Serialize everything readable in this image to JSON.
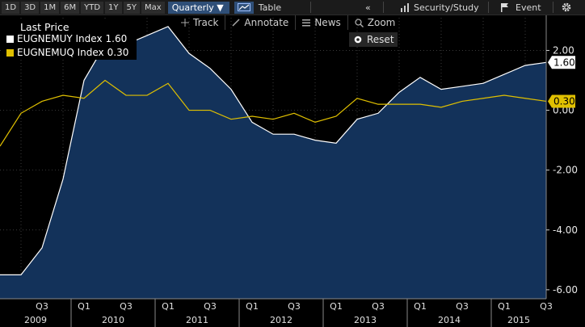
{
  "toolbar": {
    "ranges": [
      "1D",
      "3D",
      "1M",
      "6M",
      "YTD",
      "1Y",
      "5Y",
      "Max"
    ],
    "frequency": "Quarterly ▼",
    "table_label": "Table",
    "collapse": "«",
    "security_study": "Security/Study",
    "event": "Event",
    "settings_icon": "gear-icon"
  },
  "tools": {
    "track": "Track",
    "annotate": "Annotate",
    "news": "News",
    "zoom": "Zoom",
    "reset": "Reset"
  },
  "legend": {
    "title": "Last Price",
    "items": [
      {
        "label": "EUGNEMUY Index",
        "value": "1.60",
        "color": "#ffffff"
      },
      {
        "label": "EUGNEMUQ Index",
        "value": "0.30",
        "color": "#e0c000"
      }
    ]
  },
  "chart_data": {
    "type": "area",
    "x": [
      "2009-Q1",
      "2009-Q2",
      "2009-Q3",
      "2009-Q4",
      "2010-Q1",
      "2010-Q2",
      "2010-Q3",
      "2010-Q4",
      "2011-Q1",
      "2011-Q2",
      "2011-Q3",
      "2011-Q4",
      "2012-Q1",
      "2012-Q2",
      "2012-Q3",
      "2012-Q4",
      "2013-Q1",
      "2013-Q2",
      "2013-Q3",
      "2013-Q4",
      "2014-Q1",
      "2014-Q2",
      "2014-Q3",
      "2014-Q4",
      "2015-Q1",
      "2015-Q2",
      "2015-Q3"
    ],
    "series": [
      {
        "name": "EUGNEMUY Index",
        "color": "#ffffff",
        "fill": "#13325a",
        "values": [
          -5.5,
          -5.5,
          -4.6,
          -2.3,
          1.0,
          2.2,
          2.2,
          2.5,
          2.8,
          1.9,
          1.4,
          0.7,
          -0.4,
          -0.8,
          -0.8,
          -1.0,
          -1.1,
          -0.3,
          -0.1,
          0.6,
          1.1,
          0.7,
          0.8,
          0.9,
          1.2,
          1.5,
          1.6
        ]
      },
      {
        "name": "EUGNEMUQ Index",
        "color": "#e0c000",
        "values": [
          -1.2,
          -0.1,
          0.3,
          0.5,
          0.4,
          1.0,
          0.5,
          0.5,
          0.9,
          0.0,
          0.0,
          -0.3,
          -0.2,
          -0.3,
          -0.1,
          -0.4,
          -0.2,
          0.4,
          0.2,
          0.2,
          0.2,
          0.1,
          0.3,
          0.4,
          0.5,
          0.4,
          0.3
        ]
      }
    ],
    "last_values": [
      "1.60",
      "0.30"
    ],
    "ylim": [
      -6.3,
      3.2
    ],
    "y_ticks": [
      2.0,
      0.0,
      -2.0,
      -4.0,
      -6.0
    ],
    "y_tick_labels": [
      "2.00",
      "0.00",
      "-2.00",
      "-4.00",
      "-6.00"
    ],
    "quarter_labels": [
      "Q3",
      "Q1",
      "Q3",
      "Q1",
      "Q3",
      "Q1",
      "Q3",
      "Q1",
      "Q3",
      "Q1",
      "Q3",
      "Q1",
      "Q3"
    ],
    "year_labels": [
      "2009",
      "2010",
      "2011",
      "2012",
      "2013",
      "2014",
      "2015"
    ],
    "grid": true
  }
}
